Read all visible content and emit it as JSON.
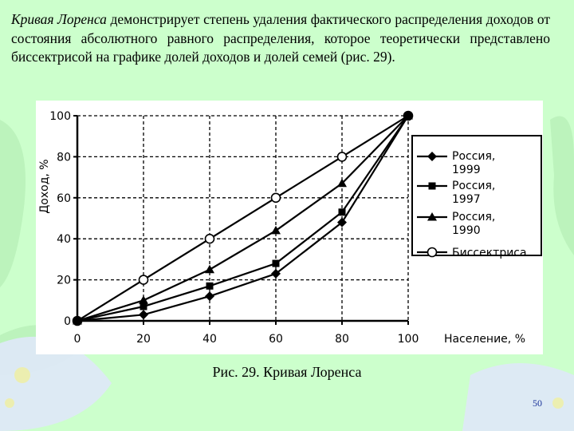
{
  "intro": {
    "term": "Кривая Лоренса",
    "text": " демонстрирует степень удаления фактического распределения доходов от состояния абсолютного равного распределения, которое теоретически представлено биссектрисой на графике долей доходов и долей семей (рис. 29)."
  },
  "caption": "Рис. 29. Кривая Лоренса",
  "page_number": "50",
  "chart_data": {
    "type": "line",
    "xlabel": "Население, %",
    "ylabel": "Доход, %",
    "xlim": [
      0,
      100
    ],
    "ylim": [
      0,
      100
    ],
    "x_ticks": [
      "0",
      "20",
      "40",
      "60",
      "80",
      "100"
    ],
    "y_ticks": [
      "0",
      "20",
      "40",
      "60",
      "80",
      "100"
    ],
    "grid": "dashed",
    "legend_position": "right",
    "series": [
      {
        "name": "Россия, 1999",
        "marker": "diamond",
        "points": [
          [
            0,
            0
          ],
          [
            20,
            3
          ],
          [
            40,
            12
          ],
          [
            60,
            23
          ],
          [
            80,
            48
          ],
          [
            100,
            100
          ]
        ]
      },
      {
        "name": "Россия, 1997",
        "marker": "square",
        "points": [
          [
            0,
            0
          ],
          [
            20,
            7
          ],
          [
            40,
            17
          ],
          [
            60,
            28
          ],
          [
            80,
            53
          ],
          [
            100,
            100
          ]
        ]
      },
      {
        "name": "Россия, 1990",
        "marker": "triangle",
        "points": [
          [
            0,
            0
          ],
          [
            20,
            10
          ],
          [
            40,
            25
          ],
          [
            60,
            44
          ],
          [
            80,
            67
          ],
          [
            100,
            100
          ]
        ]
      },
      {
        "name": "Биссектриса",
        "marker": "circle",
        "points": [
          [
            0,
            0
          ],
          [
            20,
            20
          ],
          [
            40,
            40
          ],
          [
            60,
            60
          ],
          [
            80,
            80
          ],
          [
            100,
            100
          ]
        ]
      }
    ]
  }
}
